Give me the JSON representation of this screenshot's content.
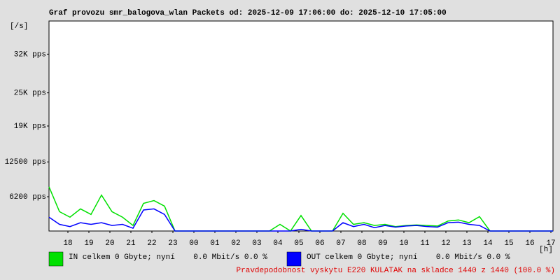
{
  "chart_data": {
    "type": "line",
    "title": "Graf provozu smr_balogova_wlan Packets od: 2025-12-09 17:06:00 do: 2025-12-10 17:05:00",
    "y_unit": "[/s]",
    "x_unit": "[h]",
    "x": [
      0,
      0.5,
      1,
      1.5,
      2,
      2.5,
      3,
      3.5,
      4,
      4.5,
      5,
      5.5,
      6,
      6.5,
      7,
      7.5,
      8,
      8.5,
      9,
      9.5,
      10,
      10.5,
      11,
      11.5,
      12,
      12.5,
      13,
      13.5,
      14,
      14.5,
      15,
      15.5,
      16,
      16.5,
      17,
      17.5,
      18,
      18.5,
      19,
      19.5,
      20,
      20.5,
      21,
      21.5,
      22,
      22.5,
      23,
      23.5,
      24
    ],
    "series": [
      {
        "name": "IN celkem 0 Gbyte; nyní    0.0 Mbit/s 0.0 %",
        "color": "#00e000",
        "values": [
          8000,
          3500,
          2500,
          4000,
          3000,
          6500,
          3500,
          2500,
          1000,
          5000,
          5500,
          4500,
          0,
          0,
          0,
          0,
          0,
          0,
          0,
          0,
          0,
          0,
          1200,
          0,
          2800,
          0,
          0,
          0,
          3200,
          1200,
          1500,
          1000,
          1200,
          800,
          1000,
          1100,
          1000,
          900,
          1800,
          2000,
          1500,
          2600,
          0,
          0,
          0,
          0,
          0,
          0,
          0
        ]
      },
      {
        "name": "OUT celkem 0 Gbyte; nyní    0.0 Mbit/s 0.0 %",
        "color": "#0000ff",
        "values": [
          2500,
          1200,
          800,
          1500,
          1200,
          1500,
          1000,
          1200,
          500,
          3800,
          4000,
          3000,
          0,
          0,
          0,
          0,
          0,
          0,
          0,
          0,
          0,
          0,
          0,
          0,
          300,
          0,
          0,
          0,
          1500,
          800,
          1200,
          600,
          1000,
          700,
          900,
          1000,
          800,
          700,
          1500,
          1600,
          1200,
          1000,
          0,
          0,
          0,
          0,
          0,
          0,
          0
        ]
      }
    ],
    "xlim": [
      0,
      24
    ],
    "xticks": [
      {
        "value": 0.9,
        "label": "18"
      },
      {
        "value": 1.9,
        "label": "19"
      },
      {
        "value": 2.9,
        "label": "20"
      },
      {
        "value": 3.9,
        "label": "21"
      },
      {
        "value": 4.9,
        "label": "22"
      },
      {
        "value": 5.9,
        "label": "23"
      },
      {
        "value": 6.9,
        "label": "00"
      },
      {
        "value": 7.9,
        "label": "01"
      },
      {
        "value": 8.9,
        "label": "02"
      },
      {
        "value": 9.9,
        "label": "03"
      },
      {
        "value": 10.9,
        "label": "04"
      },
      {
        "value": 11.9,
        "label": "05"
      },
      {
        "value": 12.9,
        "label": "06"
      },
      {
        "value": 13.9,
        "label": "07"
      },
      {
        "value": 14.9,
        "label": "08"
      },
      {
        "value": 15.9,
        "label": "09"
      },
      {
        "value": 16.9,
        "label": "10"
      },
      {
        "value": 17.9,
        "label": "11"
      },
      {
        "value": 18.9,
        "label": "12"
      },
      {
        "value": 19.9,
        "label": "13"
      },
      {
        "value": 20.9,
        "label": "14"
      },
      {
        "value": 21.9,
        "label": "15"
      },
      {
        "value": 22.9,
        "label": "16"
      },
      {
        "value": 23.9,
        "label": "17"
      }
    ],
    "ylim": [
      0,
      38000
    ],
    "yticks": [
      {
        "value": 6200,
        "label": "6200 pps"
      },
      {
        "value": 12500,
        "label": "12500 pps"
      },
      {
        "value": 19000,
        "label": "19K pps"
      },
      {
        "value": 25000,
        "label": "25K pps"
      },
      {
        "value": 32000,
        "label": "32K pps"
      }
    ],
    "grid": false,
    "footnote": "Pravdepodobnost vyskytu E220 KULATAK na skladce 1440 z 1440 (100.0 %)"
  }
}
